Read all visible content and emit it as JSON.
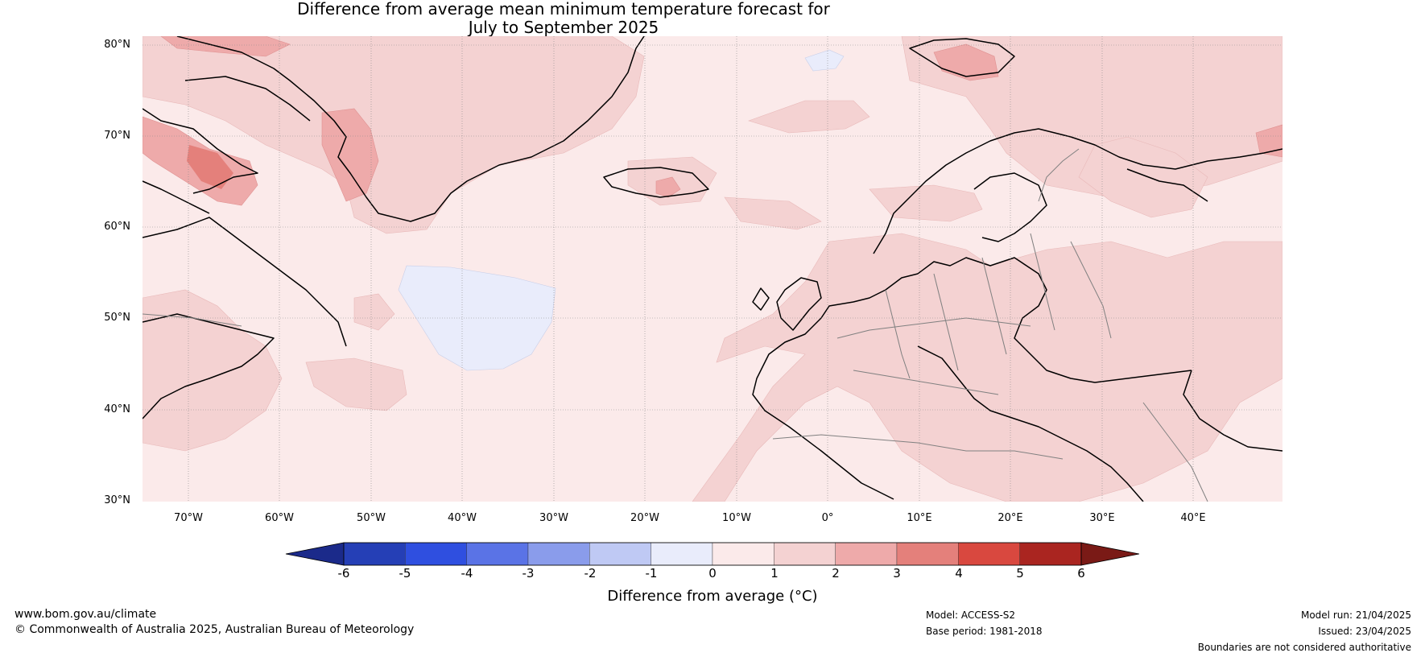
{
  "title_line1": "Difference from average mean minimum temperature forecast for",
  "title_line2": "July to September 2025",
  "lat_labels": [
    "80°N",
    "70°N",
    "60°N",
    "50°N",
    "40°N",
    "30°N"
  ],
  "lon_labels": [
    "70°W",
    "60°W",
    "50°W",
    "40°W",
    "30°W",
    "20°W",
    "10°W",
    "0°",
    "10°E",
    "20°E",
    "30°E",
    "40°E"
  ],
  "colorbar": {
    "ticks": [
      "-6",
      "-5",
      "-4",
      "-3",
      "-2",
      "-1",
      "0",
      "1",
      "2",
      "3",
      "4",
      "5",
      "6"
    ],
    "label": "Difference from average (°C)",
    "colors": [
      "#1b2a8a",
      "#253fb6",
      "#2f4fe0",
      "#5a73e6",
      "#8a9ceb",
      "#bfc9f4",
      "#e9ecfb",
      "#fbeaea",
      "#f4d2d2",
      "#eeaaaa",
      "#e4807b",
      "#d9483f",
      "#aa2520",
      "#7a1a16"
    ]
  },
  "map_data": {
    "extent": {
      "lon": [
        -75,
        50
      ],
      "lat": [
        30,
        80
      ]
    },
    "background_anomaly": "0 to 1",
    "cool_region_anomaly": "-1 to 0",
    "warm_region_anomaly": "1 to 3"
  },
  "footer": {
    "website": "www.bom.gov.au/climate",
    "copyright": "© Commonwealth of Australia 2025, Australian Bureau of Meteorology",
    "model": "Model: ACCESS-S2",
    "base_period": "Base period: 1981-2018",
    "model_run": "Model run: 21/04/2025",
    "issued": "Issued: 23/04/2025",
    "disclaimer": "Boundaries are not considered authoritative"
  }
}
